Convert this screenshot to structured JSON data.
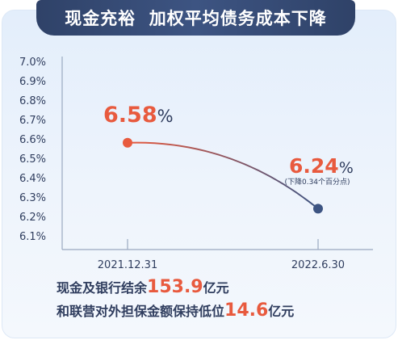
{
  "banner": {
    "title": "现金充裕  加权平均债务成本下降"
  },
  "chart_data": {
    "type": "line",
    "categories": [
      "2021.12.31",
      "2022.6.30"
    ],
    "series": [
      {
        "values": [
          6.58,
          6.24
        ]
      }
    ],
    "y_ticks": [
      "7.0%",
      "6.9%",
      "6.8%",
      "6.7%",
      "6.6%",
      "6.5%",
      "6.4%",
      "6.3%",
      "6.2%",
      "6.1%"
    ],
    "ylim": [
      6.05,
      7.0
    ],
    "data_labels": [
      {
        "number": "6.58",
        "unit": "%"
      },
      {
        "number": "6.24",
        "unit": "%",
        "note": "(下降0.34个百分点)"
      }
    ],
    "colors": {
      "start": "#e85a3e",
      "end": "#3d5482",
      "axis": "#9aa9c0"
    }
  },
  "summary": {
    "line1": {
      "prefix": "现金及银行结余",
      "value": "153.9",
      "suffix": "亿元"
    },
    "line2": {
      "prefix": "和联营对外担保金额保持低位",
      "value": "14.6",
      "suffix": "亿元"
    }
  }
}
